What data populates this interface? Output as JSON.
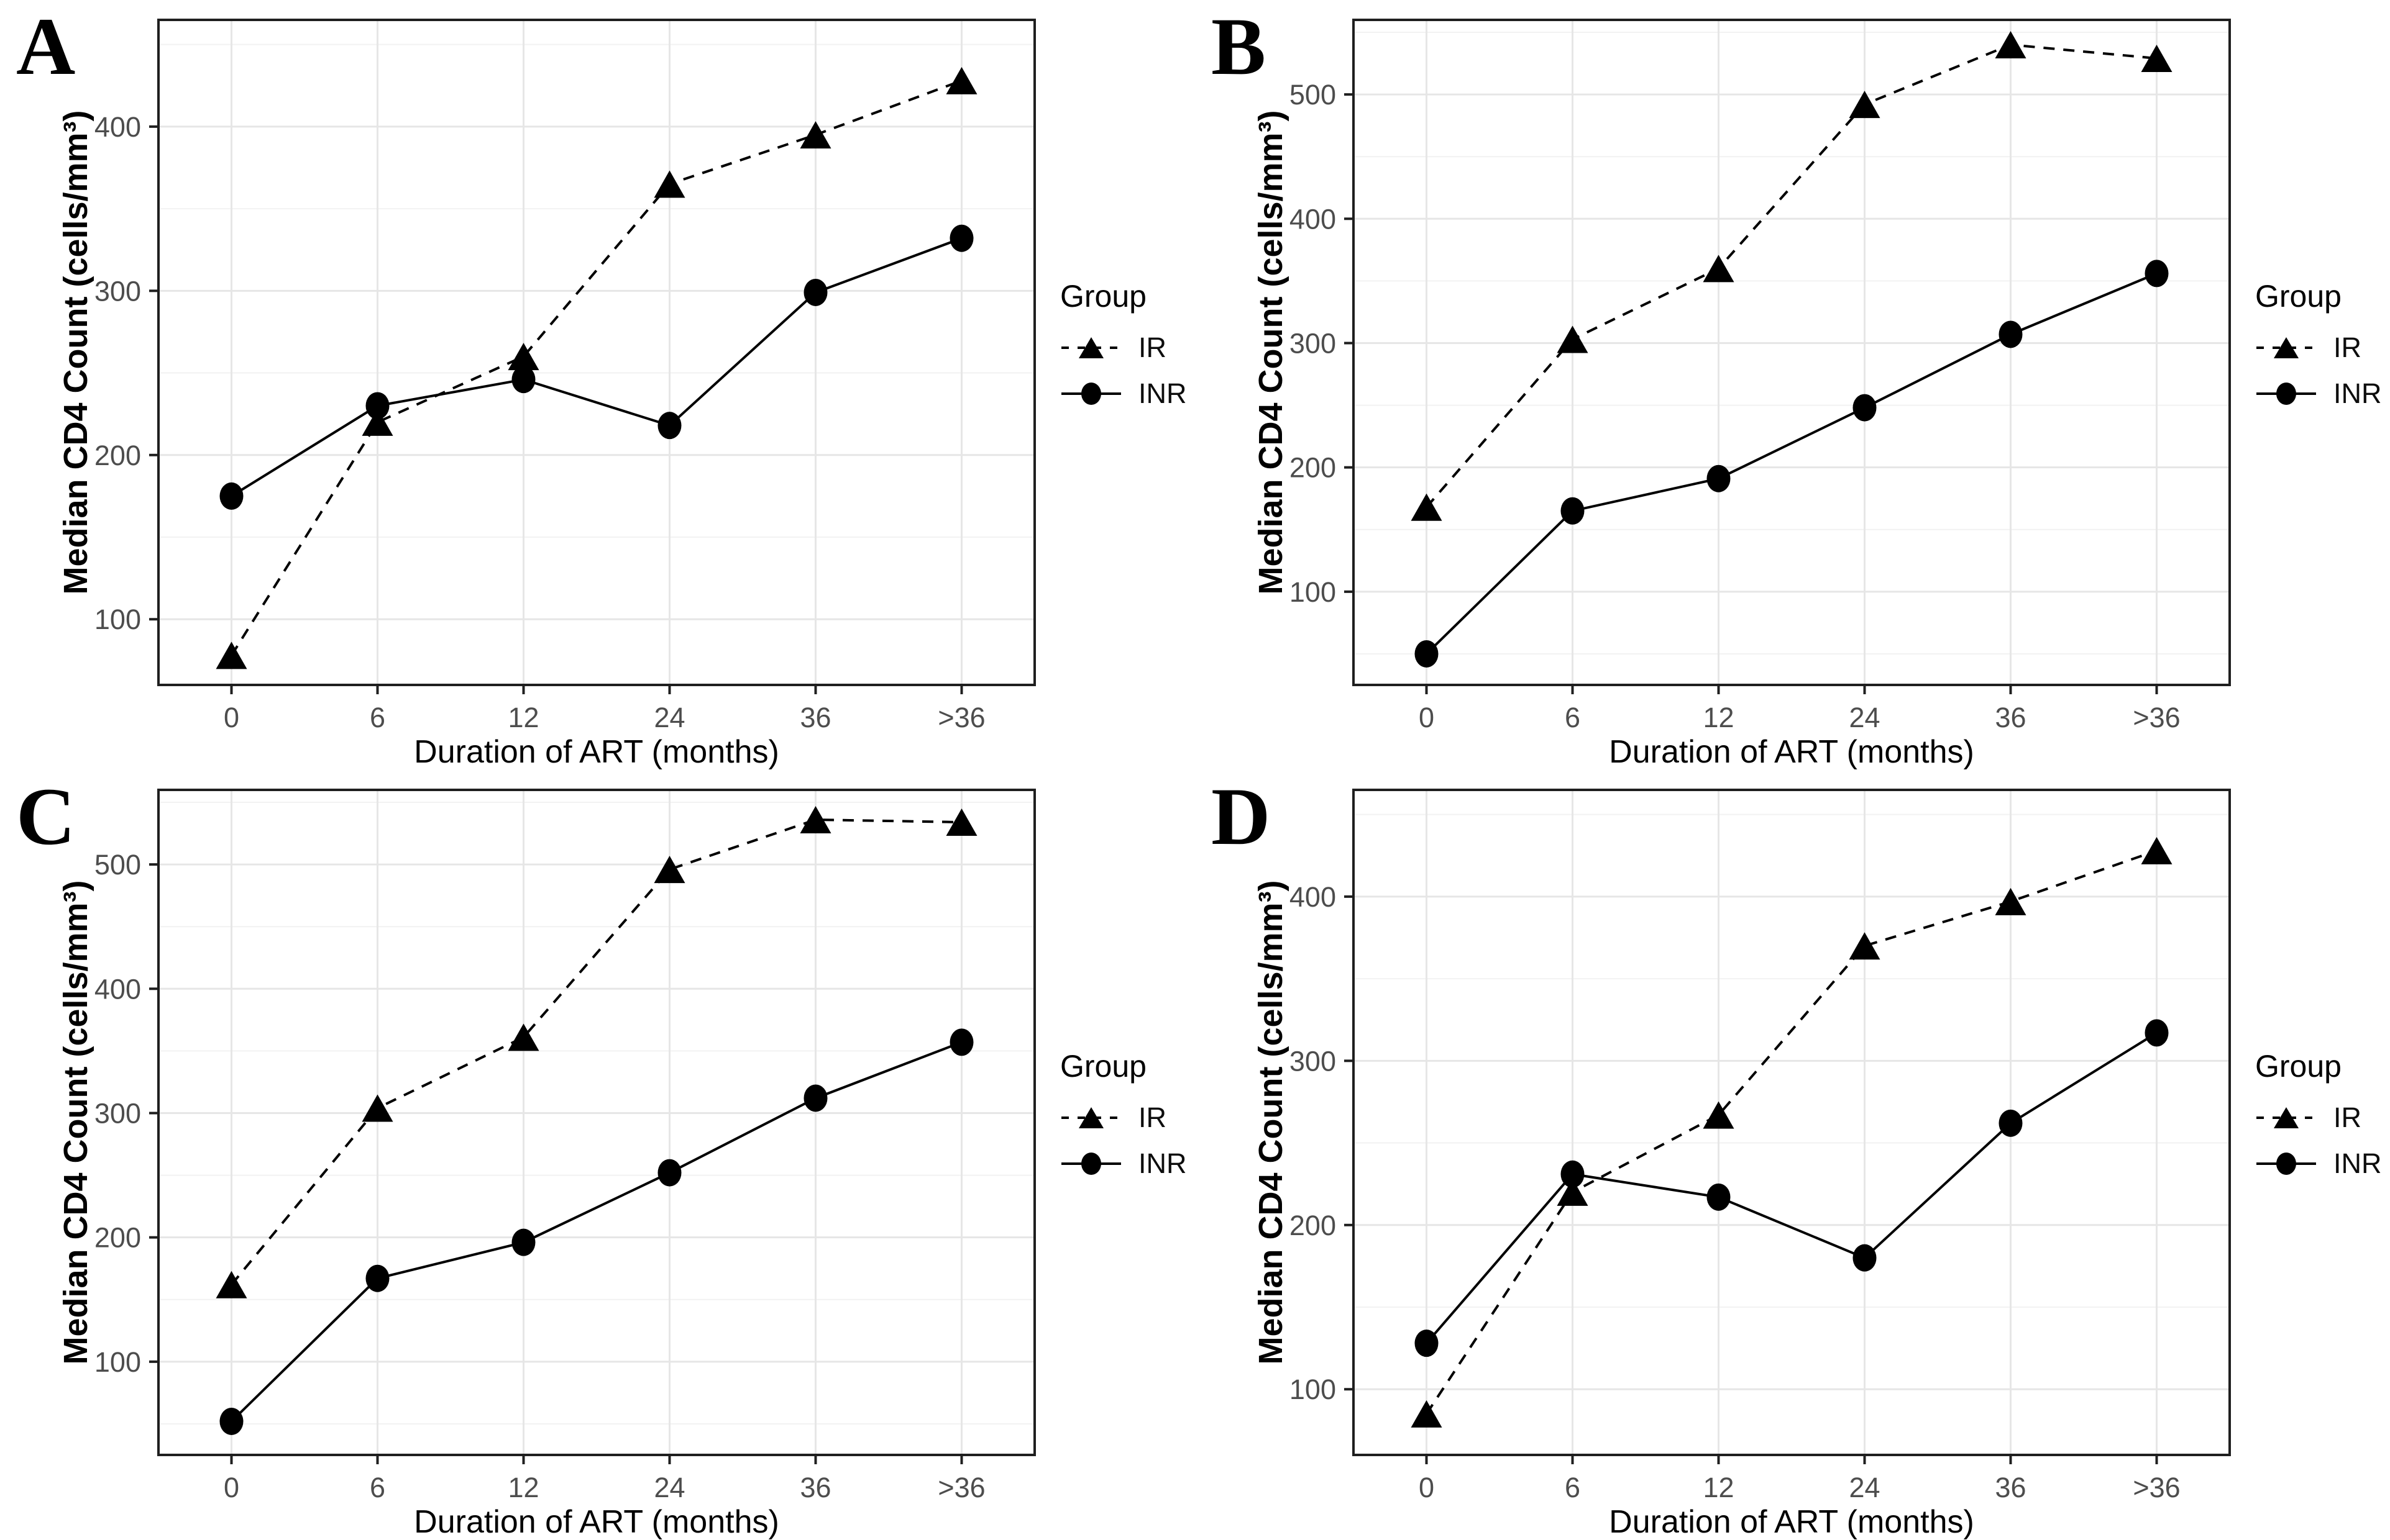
{
  "figure": {
    "xlabel": "Duration of ART (months)",
    "ylabel": "Median CD4 Count (cells/mm³)",
    "x_categories": [
      "0",
      "6",
      "12",
      "24",
      "36",
      ">36"
    ],
    "legend": {
      "title": "Group",
      "items": [
        {
          "label": "IR",
          "marker": "triangle",
          "line": "dashed"
        },
        {
          "label": "INR",
          "marker": "circle",
          "line": "solid"
        }
      ]
    },
    "colors": {
      "series": "#000000",
      "grid_major": "#e6e6e6",
      "grid_minor": "#f2f2f2",
      "panel_border": "#1f1f1f",
      "tick_mark": "#1f1f1f",
      "tick_label": "#4d4d4d",
      "axis_title": "#000000",
      "background": "#ffffff"
    }
  },
  "chart_data": [
    {
      "panel": "A",
      "type": "line",
      "x": [
        "0",
        "6",
        "12",
        "24",
        "36",
        ">36"
      ],
      "xlabel": "Duration of ART (months)",
      "ylabel": "Median CD4 Count (cells/mm³)",
      "yticks": [
        100,
        200,
        300,
        400
      ],
      "ylim": [
        60,
        465
      ],
      "grid": true,
      "legend_position": "right",
      "series": [
        {
          "name": "IR",
          "marker": "triangle",
          "line": "dashed",
          "values": [
            78,
            220,
            260,
            365,
            395,
            428
          ]
        },
        {
          "name": "INR",
          "marker": "circle",
          "line": "solid",
          "values": [
            175,
            230,
            246,
            218,
            299,
            332
          ]
        }
      ]
    },
    {
      "panel": "B",
      "type": "line",
      "x": [
        "0",
        "6",
        "12",
        "24",
        "36",
        ">36"
      ],
      "xlabel": "Duration of ART (months)",
      "ylabel": "Median CD4 Count (cells/mm³)",
      "yticks": [
        100,
        200,
        300,
        400,
        500
      ],
      "ylim": [
        25,
        560
      ],
      "grid": true,
      "legend_position": "right",
      "series": [
        {
          "name": "IR",
          "marker": "triangle",
          "line": "dashed",
          "values": [
            168,
            303,
            360,
            492,
            540,
            529
          ]
        },
        {
          "name": "INR",
          "marker": "circle",
          "line": "solid",
          "values": [
            50,
            165,
            191,
            248,
            307,
            356
          ]
        }
      ]
    },
    {
      "panel": "C",
      "type": "line",
      "x": [
        "0",
        "6",
        "12",
        "24",
        "36",
        ">36"
      ],
      "xlabel": "Duration of ART (months)",
      "ylabel": "Median CD4 Count (cells/mm³)",
      "yticks": [
        100,
        200,
        300,
        400,
        500
      ],
      "ylim": [
        25,
        560
      ],
      "grid": true,
      "legend_position": "right",
      "series": [
        {
          "name": "IR",
          "marker": "triangle",
          "line": "dashed",
          "values": [
            162,
            304,
            361,
            496,
            536,
            534
          ]
        },
        {
          "name": "INR",
          "marker": "circle",
          "line": "solid",
          "values": [
            52,
            167,
            196,
            252,
            312,
            357
          ]
        }
      ]
    },
    {
      "panel": "D",
      "type": "line",
      "x": [
        "0",
        "6",
        "12",
        "24",
        "36",
        ">36"
      ],
      "xlabel": "Duration of ART (months)",
      "ylabel": "Median CD4 Count (cells/mm³)",
      "yticks": [
        100,
        200,
        300,
        400
      ],
      "ylim": [
        60,
        465
      ],
      "grid": true,
      "legend_position": "right",
      "series": [
        {
          "name": "IR",
          "marker": "triangle",
          "line": "dashed",
          "values": [
            85,
            220,
            267,
            370,
            397,
            428
          ]
        },
        {
          "name": "INR",
          "marker": "circle",
          "line": "solid",
          "values": [
            128,
            231,
            217,
            180,
            262,
            317
          ]
        }
      ]
    }
  ]
}
